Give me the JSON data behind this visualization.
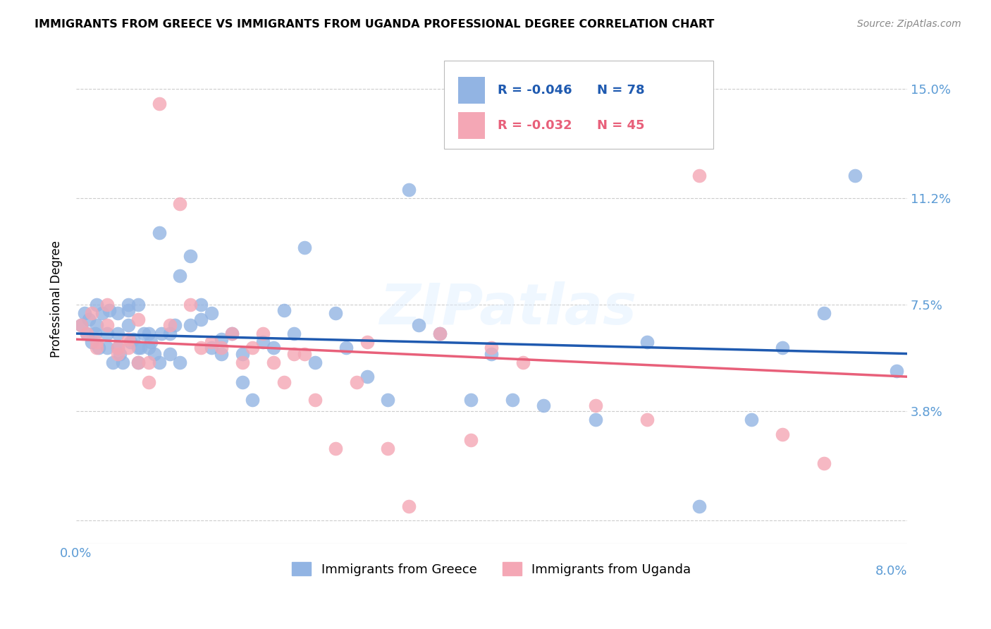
{
  "title": "IMMIGRANTS FROM GREECE VS IMMIGRANTS FROM UGANDA PROFESSIONAL DEGREE CORRELATION CHART",
  "source": "Source: ZipAtlas.com",
  "ylabel": "Professional Degree",
  "ytick_vals": [
    0.0,
    0.038,
    0.075,
    0.112,
    0.15
  ],
  "ytick_labels": [
    "",
    "3.8%",
    "7.5%",
    "11.2%",
    "15.0%"
  ],
  "xlim": [
    0.0,
    0.08
  ],
  "ylim": [
    -0.008,
    0.162
  ],
  "legend_r1": "-0.046",
  "legend_n1": "78",
  "legend_r2": "-0.032",
  "legend_n2": "45",
  "color_greece": "#92b4e3",
  "color_uganda": "#f4a7b5",
  "color_line_greece": "#1f5ab0",
  "color_line_uganda": "#e8607a",
  "color_axis": "#5b9bd5",
  "watermark": "ZIPatlas",
  "greece_x": [
    0.0005,
    0.0008,
    0.001,
    0.0012,
    0.0015,
    0.0018,
    0.002,
    0.002,
    0.0022,
    0.0025,
    0.003,
    0.003,
    0.0032,
    0.0035,
    0.004,
    0.004,
    0.004,
    0.0042,
    0.0045,
    0.005,
    0.005,
    0.005,
    0.0052,
    0.0055,
    0.006,
    0.006,
    0.006,
    0.0062,
    0.0065,
    0.007,
    0.007,
    0.0072,
    0.0075,
    0.008,
    0.008,
    0.0082,
    0.009,
    0.009,
    0.0095,
    0.01,
    0.01,
    0.011,
    0.011,
    0.012,
    0.012,
    0.013,
    0.013,
    0.014,
    0.014,
    0.015,
    0.016,
    0.016,
    0.017,
    0.018,
    0.019,
    0.02,
    0.021,
    0.022,
    0.023,
    0.025,
    0.026,
    0.028,
    0.03,
    0.032,
    0.033,
    0.035,
    0.038,
    0.04,
    0.042,
    0.045,
    0.05,
    0.055,
    0.06,
    0.065,
    0.068,
    0.072,
    0.075,
    0.079
  ],
  "greece_y": [
    0.068,
    0.072,
    0.065,
    0.07,
    0.062,
    0.065,
    0.068,
    0.075,
    0.06,
    0.072,
    0.065,
    0.06,
    0.073,
    0.055,
    0.06,
    0.065,
    0.072,
    0.058,
    0.055,
    0.068,
    0.073,
    0.075,
    0.062,
    0.063,
    0.055,
    0.06,
    0.075,
    0.06,
    0.065,
    0.06,
    0.065,
    0.062,
    0.058,
    0.055,
    0.1,
    0.065,
    0.065,
    0.058,
    0.068,
    0.055,
    0.085,
    0.092,
    0.068,
    0.075,
    0.07,
    0.06,
    0.072,
    0.063,
    0.058,
    0.065,
    0.048,
    0.058,
    0.042,
    0.062,
    0.06,
    0.073,
    0.065,
    0.095,
    0.055,
    0.072,
    0.06,
    0.05,
    0.042,
    0.115,
    0.068,
    0.065,
    0.042,
    0.058,
    0.042,
    0.04,
    0.035,
    0.062,
    0.005,
    0.035,
    0.06,
    0.072,
    0.12,
    0.052
  ],
  "uganda_x": [
    0.0005,
    0.001,
    0.0015,
    0.002,
    0.002,
    0.003,
    0.003,
    0.004,
    0.004,
    0.005,
    0.005,
    0.006,
    0.006,
    0.007,
    0.007,
    0.008,
    0.009,
    0.01,
    0.011,
    0.012,
    0.013,
    0.014,
    0.015,
    0.016,
    0.017,
    0.018,
    0.019,
    0.02,
    0.021,
    0.022,
    0.023,
    0.025,
    0.027,
    0.028,
    0.03,
    0.032,
    0.035,
    0.038,
    0.04,
    0.043,
    0.05,
    0.055,
    0.06,
    0.068,
    0.072
  ],
  "uganda_y": [
    0.068,
    0.065,
    0.072,
    0.062,
    0.06,
    0.075,
    0.068,
    0.058,
    0.06,
    0.063,
    0.06,
    0.07,
    0.055,
    0.048,
    0.055,
    0.145,
    0.068,
    0.11,
    0.075,
    0.06,
    0.062,
    0.06,
    0.065,
    0.055,
    0.06,
    0.065,
    0.055,
    0.048,
    0.058,
    0.058,
    0.042,
    0.025,
    0.048,
    0.062,
    0.025,
    0.005,
    0.065,
    0.028,
    0.06,
    0.055,
    0.04,
    0.035,
    0.12,
    0.03,
    0.02
  ]
}
